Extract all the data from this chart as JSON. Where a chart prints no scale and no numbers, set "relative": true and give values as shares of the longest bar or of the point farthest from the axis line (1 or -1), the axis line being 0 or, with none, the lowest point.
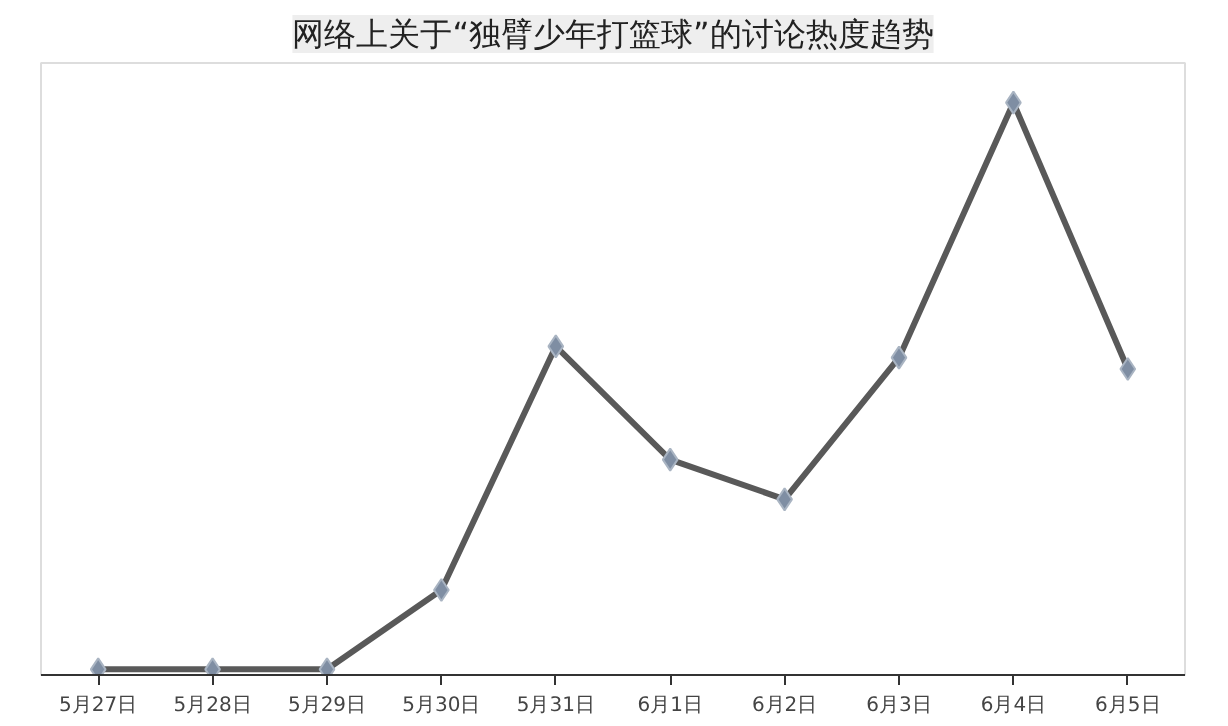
{
  "chart_data": {
    "type": "line",
    "title": "网络上关于“独臂少年打篮球”的讨论热度趋势",
    "relative": true,
    "categories": [
      "5月27日",
      "5月28日",
      "5月29日",
      "5月30日",
      "5月31日",
      "6月1日",
      "6月2日",
      "6月3日",
      "6月4日",
      "6月5日"
    ],
    "series": [
      {
        "color": "#595959",
        "values": [
          0,
          0,
          0,
          0.14,
          0.57,
          0.37,
          0.3,
          0.55,
          1,
          0.53
        ]
      }
    ],
    "marker": "diamond",
    "line_style": "solid"
  }
}
